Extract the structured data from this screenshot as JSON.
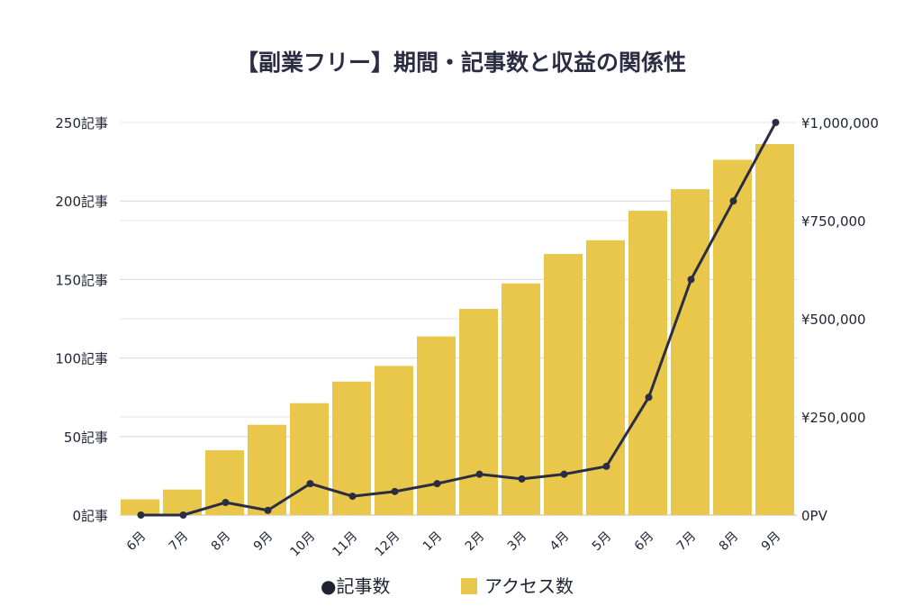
{
  "chart_data": {
    "type": "bar+line",
    "title": "【副業フリー】期間・記事数と収益の関係性",
    "categories": [
      "6月",
      "7月",
      "8月",
      "9月",
      "10月",
      "11月",
      "12月",
      "1月",
      "2月",
      "3月",
      "4月",
      "5月",
      "6月",
      "7月",
      "8月",
      "9月"
    ],
    "left_axis": {
      "ticks": [
        "0記事",
        "50記事",
        "100記事",
        "150記事",
        "200記事",
        "250記事"
      ],
      "ylim": [
        0,
        250
      ]
    },
    "right_axis": {
      "ticks": [
        "0PV",
        "¥250,000",
        "¥500,000",
        "¥750,000",
        "¥1,000,000"
      ],
      "ylim": [
        0,
        1000000
      ]
    },
    "series": [
      {
        "name": "アクセス数",
        "type": "bar",
        "axis": "right",
        "color": "#e9c74b",
        "values": [
          40000,
          65000,
          165000,
          230000,
          285000,
          340000,
          380000,
          455000,
          525000,
          590000,
          665000,
          700000,
          775000,
          830000,
          905000,
          945000
        ]
      },
      {
        "name": "記事数",
        "type": "line",
        "axis": "left",
        "color": "#2b2d42",
        "values": [
          0,
          0,
          8,
          3,
          20,
          12,
          15,
          20,
          26,
          23,
          26,
          31,
          75,
          150,
          200,
          250
        ]
      }
    ],
    "legend": [
      "●記事数",
      "アクセス数"
    ],
    "legend_position": "bottom",
    "grid": true
  }
}
